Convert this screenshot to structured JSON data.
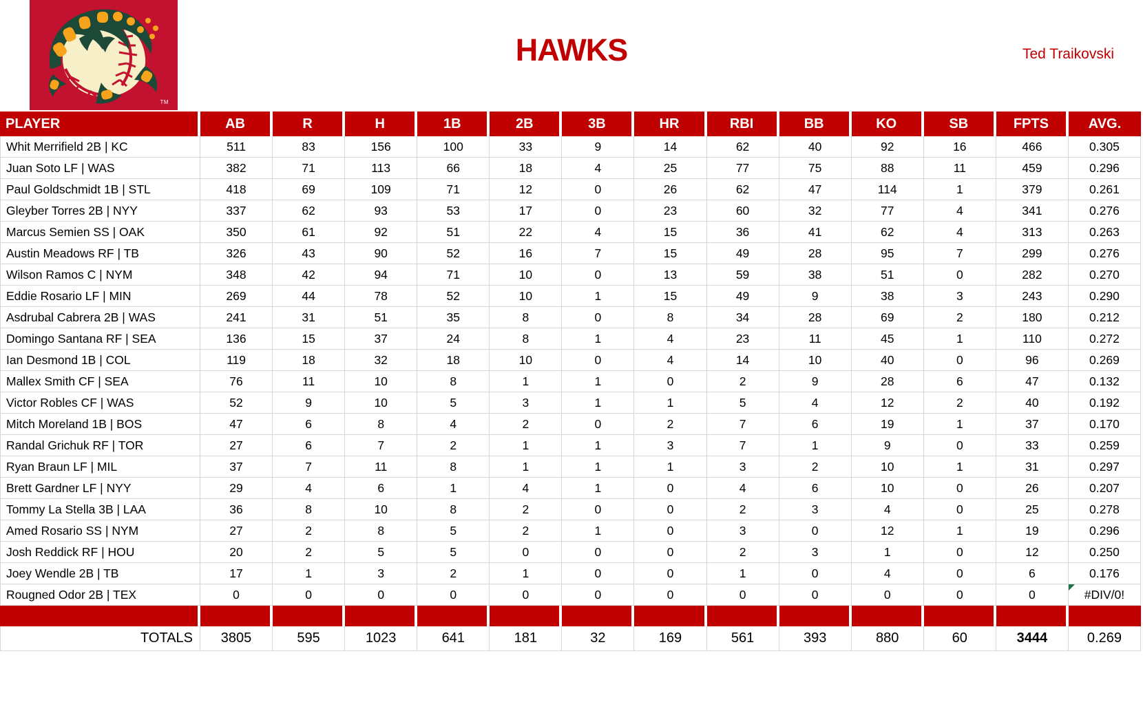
{
  "team": {
    "name": "HAWKS",
    "owner": "Ted Traikovski",
    "logo_trademark": "TM"
  },
  "colors": {
    "table_red": "#C00000",
    "title_red": "#C00000",
    "logo_background_red": "#C2122F",
    "logo_green": "#1D4A38",
    "logo_orange": "#F7A31C",
    "logo_cream": "#F6EFC7",
    "error_indicator_green": "#1E7145",
    "gridline_gray": "#D6D6D6"
  },
  "table": {
    "columns": [
      "PLAYER",
      "AB",
      "R",
      "H",
      "1B",
      "2B",
      "3B",
      "HR",
      "RBI",
      "BB",
      "KO",
      "SB",
      "FPTS",
      "AVG."
    ],
    "players": [
      {
        "name": "Whit Merrifield 2B | KC",
        "stats": [
          511,
          83,
          156,
          100,
          33,
          9,
          14,
          62,
          40,
          92,
          16,
          466,
          "0.305"
        ]
      },
      {
        "name": "Juan Soto LF | WAS",
        "stats": [
          382,
          71,
          113,
          66,
          18,
          4,
          25,
          77,
          75,
          88,
          11,
          459,
          "0.296"
        ]
      },
      {
        "name": "Paul Goldschmidt 1B | STL",
        "stats": [
          418,
          69,
          109,
          71,
          12,
          0,
          26,
          62,
          47,
          114,
          1,
          379,
          "0.261"
        ]
      },
      {
        "name": "Gleyber Torres 2B | NYY",
        "stats": [
          337,
          62,
          93,
          53,
          17,
          0,
          23,
          60,
          32,
          77,
          4,
          341,
          "0.276"
        ]
      },
      {
        "name": "Marcus Semien SS | OAK",
        "stats": [
          350,
          61,
          92,
          51,
          22,
          4,
          15,
          36,
          41,
          62,
          4,
          313,
          "0.263"
        ]
      },
      {
        "name": "Austin Meadows RF | TB",
        "stats": [
          326,
          43,
          90,
          52,
          16,
          7,
          15,
          49,
          28,
          95,
          7,
          299,
          "0.276"
        ]
      },
      {
        "name": "Wilson Ramos C | NYM",
        "stats": [
          348,
          42,
          94,
          71,
          10,
          0,
          13,
          59,
          38,
          51,
          0,
          282,
          "0.270"
        ]
      },
      {
        "name": "Eddie Rosario LF | MIN",
        "stats": [
          269,
          44,
          78,
          52,
          10,
          1,
          15,
          49,
          9,
          38,
          3,
          243,
          "0.290"
        ]
      },
      {
        "name": "Asdrubal Cabrera 2B | WAS",
        "stats": [
          241,
          31,
          51,
          35,
          8,
          0,
          8,
          34,
          28,
          69,
          2,
          180,
          "0.212"
        ]
      },
      {
        "name": "Domingo Santana RF | SEA",
        "stats": [
          136,
          15,
          37,
          24,
          8,
          1,
          4,
          23,
          11,
          45,
          1,
          110,
          "0.272"
        ]
      },
      {
        "name": "Ian Desmond 1B | COL",
        "stats": [
          119,
          18,
          32,
          18,
          10,
          0,
          4,
          14,
          10,
          40,
          0,
          96,
          "0.269"
        ]
      },
      {
        "name": "Mallex Smith CF | SEA",
        "stats": [
          76,
          11,
          10,
          8,
          1,
          1,
          0,
          2,
          9,
          28,
          6,
          47,
          "0.132"
        ]
      },
      {
        "name": "Victor Robles CF | WAS",
        "stats": [
          52,
          9,
          10,
          5,
          3,
          1,
          1,
          5,
          4,
          12,
          2,
          40,
          "0.192"
        ]
      },
      {
        "name": "Mitch Moreland 1B | BOS",
        "stats": [
          47,
          6,
          8,
          4,
          2,
          0,
          2,
          7,
          6,
          19,
          1,
          37,
          "0.170"
        ]
      },
      {
        "name": "Randal Grichuk RF | TOR",
        "stats": [
          27,
          6,
          7,
          2,
          1,
          1,
          3,
          7,
          1,
          9,
          0,
          33,
          "0.259"
        ]
      },
      {
        "name": "Ryan Braun LF | MIL",
        "stats": [
          37,
          7,
          11,
          8,
          1,
          1,
          1,
          3,
          2,
          10,
          1,
          31,
          "0.297"
        ]
      },
      {
        "name": "Brett Gardner LF | NYY",
        "stats": [
          29,
          4,
          6,
          1,
          4,
          1,
          0,
          4,
          6,
          10,
          0,
          26,
          "0.207"
        ]
      },
      {
        "name": "Tommy La Stella 3B | LAA",
        "stats": [
          36,
          8,
          10,
          8,
          2,
          0,
          0,
          2,
          3,
          4,
          0,
          25,
          "0.278"
        ]
      },
      {
        "name": "Amed Rosario SS | NYM",
        "stats": [
          27,
          2,
          8,
          5,
          2,
          1,
          0,
          3,
          0,
          12,
          1,
          19,
          "0.296"
        ]
      },
      {
        "name": "Josh Reddick RF | HOU",
        "stats": [
          20,
          2,
          5,
          5,
          0,
          0,
          0,
          2,
          3,
          1,
          0,
          12,
          "0.250"
        ]
      },
      {
        "name": "Joey Wendle 2B | TB",
        "stats": [
          17,
          1,
          3,
          2,
          1,
          0,
          0,
          1,
          0,
          4,
          0,
          6,
          "0.176"
        ]
      },
      {
        "name": "Rougned Odor 2B | TEX",
        "stats": [
          0,
          0,
          0,
          0,
          0,
          0,
          0,
          0,
          0,
          0,
          0,
          0,
          "#DIV/0!"
        ]
      }
    ],
    "totals": {
      "label": "TOTALS",
      "values": [
        3805,
        595,
        1023,
        641,
        181,
        32,
        169,
        561,
        393,
        880,
        60,
        "3444",
        "0.269"
      ]
    }
  }
}
